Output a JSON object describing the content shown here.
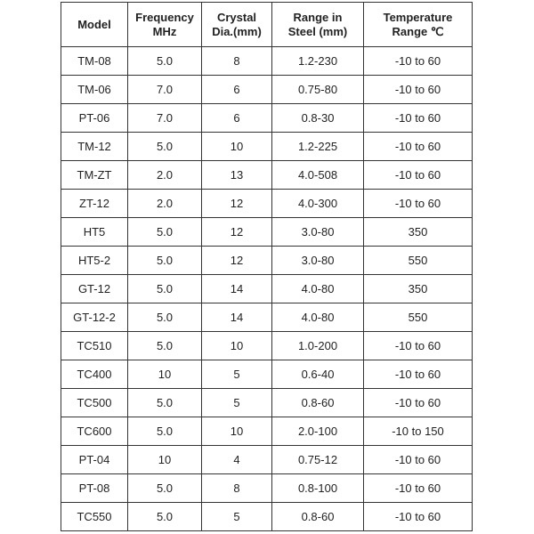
{
  "headers": [
    "Model",
    "Frequency\nMHz",
    "Crystal\nDia.(mm)",
    "Range in\nSteel (mm)",
    "Temperature\nRange ℃"
  ],
  "rows": [
    [
      "TM-08",
      "5.0",
      "8",
      "1.2-230",
      "-10 to 60"
    ],
    [
      "TM-06",
      "7.0",
      "6",
      "0.75-80",
      "-10 to 60"
    ],
    [
      "PT-06",
      "7.0",
      "6",
      "0.8-30",
      "-10 to 60"
    ],
    [
      "TM-12",
      "5.0",
      "10",
      "1.2-225",
      "-10 to 60"
    ],
    [
      "TM-ZT",
      "2.0",
      "13",
      "4.0-508",
      "-10 to 60"
    ],
    [
      "ZT-12",
      "2.0",
      "12",
      "4.0-300",
      "-10 to 60"
    ],
    [
      "HT5",
      "5.0",
      "12",
      "3.0-80",
      "350"
    ],
    [
      "HT5-2",
      "5.0",
      "12",
      "3.0-80",
      "550"
    ],
    [
      "GT-12",
      "5.0",
      "14",
      "4.0-80",
      "350"
    ],
    [
      "GT-12-2",
      "5.0",
      "14",
      "4.0-80",
      "550"
    ],
    [
      "TC510",
      "5.0",
      "10",
      "1.0-200",
      "-10 to 60"
    ],
    [
      "TC400",
      "10",
      "5",
      "0.6-40",
      "-10 to 60"
    ],
    [
      "TC500",
      "5.0",
      "5",
      "0.8-60",
      "-10 to 60"
    ],
    [
      "TC600",
      "5.0",
      "10",
      "2.0-100",
      "-10 to 150"
    ],
    [
      "PT-04",
      "10",
      "4",
      "0.75-12",
      "-10 to 60"
    ],
    [
      "PT-08",
      "5.0",
      "8",
      "0.8-100",
      "-10 to 60"
    ],
    [
      "TC550",
      "5.0",
      "5",
      "0.8-60",
      "-10 to 60"
    ]
  ]
}
